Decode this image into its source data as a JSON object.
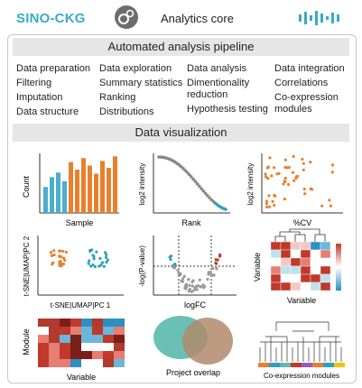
{
  "header": {
    "brand": "SINO-CKG",
    "title": "Analytics core",
    "accent": "#3aa9c8",
    "icons": [
      "gear-icon",
      "waveform-icon"
    ]
  },
  "pipeline": {
    "title": "Automated analysis pipeline",
    "columns": [
      [
        "Data preparation",
        "Filtering",
        "Imputation",
        "Data structure"
      ],
      [
        "Data exploration",
        "Summary statistics",
        "Ranking",
        "Distributions"
      ],
      [
        "Data analysis",
        "Dimentionality reduction",
        "Hypothesis testing"
      ],
      [
        "Data integration",
        "Correlations",
        "Co-expression modules"
      ]
    ]
  },
  "visualization": {
    "title": "Data visualization",
    "bar": {
      "ylabel": "Count",
      "xlabel": "Sample",
      "values": [
        0.45,
        0.62,
        0.7,
        0.55,
        0.88,
        0.75,
        0.95,
        0.82,
        0.68,
        0.9,
        0.78,
        0.98
      ],
      "colors": [
        "#4aaed0",
        "#e8802e"
      ]
    },
    "rank": {
      "ylabel": "log2 intensity",
      "xlabel": "Rank"
    },
    "cv": {
      "ylabel": "log2 intensity",
      "xlabel": "%CV"
    },
    "dimred": {
      "ylabel": "t-SNE|UMAP|PC 2",
      "xlabel": "t-SNE|UMAP|PC 1"
    },
    "volcano": {
      "ylabel": "-log(P-value)",
      "xlabel": "logFC"
    },
    "corr": {
      "ylabel": "Variable",
      "xlabel": "Variable"
    },
    "module": {
      "ylabel": "Module",
      "xlabel": "Variable"
    },
    "overlap": {
      "xlabel": "Project overlap",
      "colors": [
        "#5bb9ad",
        "#b08a6c"
      ]
    },
    "coexp": {
      "xlabel": "Co-expression modules"
    }
  }
}
